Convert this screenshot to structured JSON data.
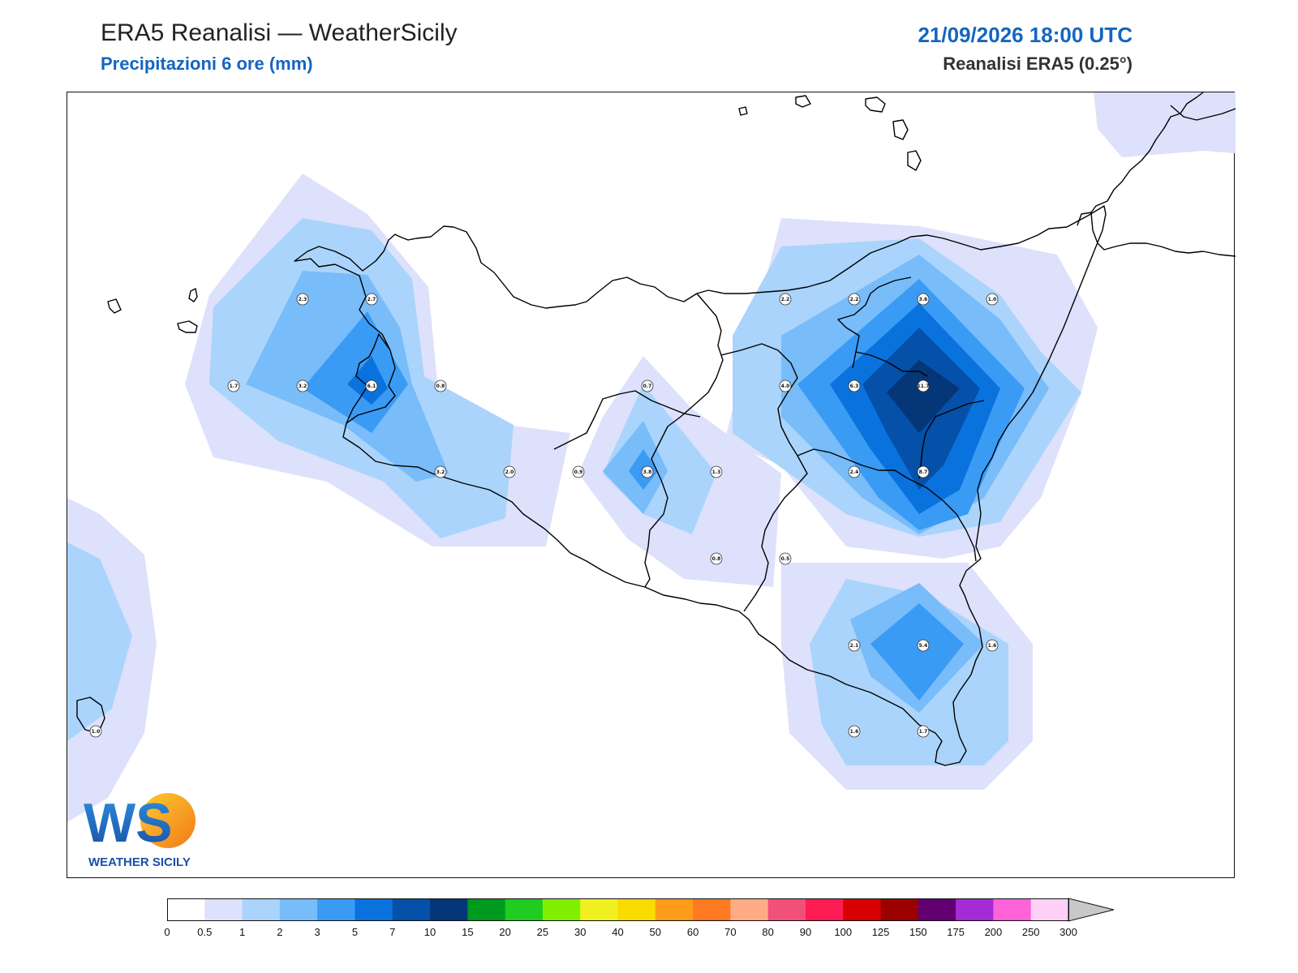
{
  "header": {
    "title": "ERA5 Reanalisi — WeatherSicily",
    "subtitle": "Precipitazioni 6 ore (mm)",
    "datetime": "21/09/2026 18:00 UTC",
    "source": "Reanalisi ERA5 (0.25°)"
  },
  "logo": {
    "text": "WS",
    "caption": "WEATHER SICILY",
    "icon": "weather-sicily-logo"
  },
  "colors": {
    "land_outline": "#000000",
    "levels": [
      "#ffffff",
      "#dde1fb",
      "#aad4fb",
      "#78bcfa",
      "#3a9bf5",
      "#0a72dd",
      "#0550a8",
      "#053677",
      "#009a1e",
      "#1fcc1f",
      "#80f000",
      "#f0f020",
      "#f9dc00",
      "#ff9c18",
      "#ff7a20",
      "#ffac85",
      "#f0507a",
      "#ff1c52",
      "#d80000",
      "#9b0000",
      "#620072",
      "#a52bd6",
      "#ff62d9",
      "#ffd0f5",
      "#c8c8c8"
    ]
  },
  "colorbar": {
    "ticks": [
      "0",
      "0.5",
      "1",
      "2",
      "3",
      "5",
      "7",
      "10",
      "15",
      "20",
      "25",
      "30",
      "40",
      "50",
      "60",
      "70",
      "80",
      "90",
      "100",
      "125",
      "150",
      "175",
      "200",
      "250",
      "300"
    ]
  },
  "chart_data": {
    "type": "heatmap",
    "variable": "Precipitazioni 6 ore (mm)",
    "stations": [
      {
        "label": "2.3",
        "value": 2.3
      },
      {
        "label": "2.7",
        "value": 2.7
      },
      {
        "label": "1.7",
        "value": 1.7
      },
      {
        "label": "3.2",
        "value": 3.2
      },
      {
        "label": "6.1",
        "value": 6.1
      },
      {
        "label": "0.8",
        "value": 0.8
      },
      {
        "label": "3.2",
        "value": 3.2
      },
      {
        "label": "2.0",
        "value": 2.0
      },
      {
        "label": "0.7",
        "value": 0.7
      },
      {
        "label": "0.9",
        "value": 0.9
      },
      {
        "label": "3.8",
        "value": 3.8
      },
      {
        "label": "1.3",
        "value": 1.3
      },
      {
        "label": "0.8",
        "value": 0.8
      },
      {
        "label": "0.5",
        "value": 0.5
      },
      {
        "label": "2.2",
        "value": 2.2
      },
      {
        "label": "2.2",
        "value": 2.2
      },
      {
        "label": "3.6",
        "value": 3.6
      },
      {
        "label": "1.0",
        "value": 1.0
      },
      {
        "label": "4.0",
        "value": 4.0
      },
      {
        "label": "6.3",
        "value": 6.3
      },
      {
        "label": "11.7",
        "value": 11.7
      },
      {
        "label": "2.4",
        "value": 2.4
      },
      {
        "label": "8.7",
        "value": 8.7
      },
      {
        "label": "2.1",
        "value": 2.1
      },
      {
        "label": "5.4",
        "value": 5.4
      },
      {
        "label": "1.6",
        "value": 1.6
      },
      {
        "label": "1.6",
        "value": 1.6
      },
      {
        "label": "1.7",
        "value": 1.7
      },
      {
        "label": "1.0",
        "value": 1.0
      }
    ]
  }
}
